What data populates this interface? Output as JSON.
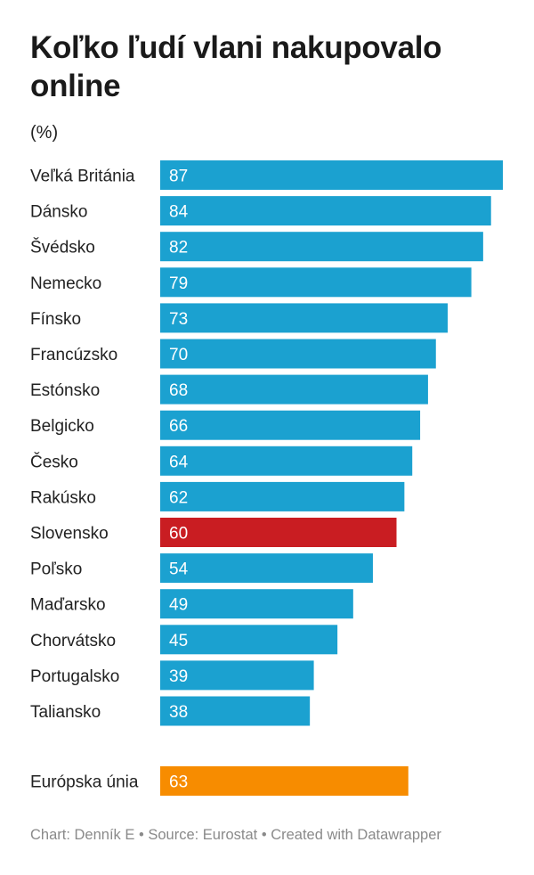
{
  "title": "Koľko ľudí vlani nakupovalo online",
  "subtitle": "(%)",
  "colors": {
    "default": "#1ba1d0",
    "highlight": "#c91d22",
    "summary": "#f78c00"
  },
  "chart_data": {
    "type": "bar",
    "orientation": "horizontal",
    "categories": [
      "Veľká Británia",
      "Dánsko",
      "Švédsko",
      "Nemecko",
      "Fínsko",
      "Francúzsko",
      "Estónsko",
      "Belgicko",
      "Česko",
      "Rakúsko",
      "Slovensko",
      "Poľsko",
      "Maďarsko",
      "Chorvátsko",
      "Portugalsko",
      "Taliansko"
    ],
    "values": [
      87,
      84,
      82,
      79,
      73,
      70,
      68,
      66,
      64,
      62,
      60,
      54,
      49,
      45,
      39,
      38
    ],
    "highlight": "Slovensko",
    "summary": {
      "category": "Európska únia",
      "value": 63
    },
    "xlim": [
      0,
      87
    ]
  },
  "footer": {
    "chart_credit": "Chart: Denník E",
    "separator": " • ",
    "source": "Source: Eurostat",
    "created_with": "Created with Datawrapper"
  }
}
